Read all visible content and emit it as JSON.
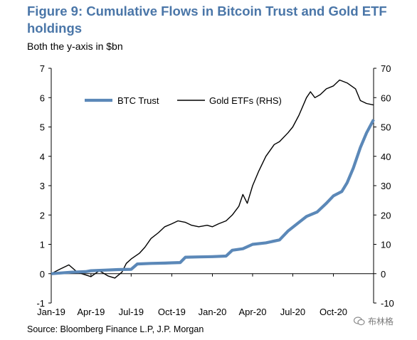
{
  "header": {
    "title": "Figure 9: Cumulative Flows in Bitcoin Trust and Gold ETF holdings",
    "subtitle": "Both the y-axis in $bn"
  },
  "footer": {
    "source": "Source: Bloomberg Finance L.P, J.P. Morgan",
    "watermark": "布林格"
  },
  "colors": {
    "btc": "#5b88b8",
    "gold": "#000000",
    "title": "#4a76a8"
  },
  "chart_data": {
    "type": "line",
    "title": "Figure 9: Cumulative Flows in Bitcoin Trust and Gold ETF holdings",
    "subtitle": "Both the y-axis in $bn",
    "x_tick_labels": [
      "Jan-19",
      "Apr-19",
      "Jul-19",
      "Oct-19",
      "Jan-20",
      "Apr-20",
      "Jul-20",
      "Oct-20"
    ],
    "x_tick_dates": [
      "2019-01-01",
      "2019-04-01",
      "2019-07-01",
      "2019-10-01",
      "2020-01-01",
      "2020-04-01",
      "2020-07-01",
      "2020-10-01"
    ],
    "x_range": [
      "2019-01-01",
      "2020-12-31"
    ],
    "ylim_left": [
      -1,
      7
    ],
    "ylim_right": [
      -10,
      70
    ],
    "y_left_ticks": [
      -1,
      0,
      1,
      2,
      3,
      4,
      5,
      6,
      7
    ],
    "y_right_ticks": [
      -10,
      0,
      10,
      20,
      30,
      40,
      50,
      60,
      70
    ],
    "legend_position": "top-left",
    "grid": false,
    "series": [
      {
        "name": "BTC Trust",
        "axis": "left",
        "points": [
          [
            "2019-01-01",
            0.0
          ],
          [
            "2019-02-15",
            0.05
          ],
          [
            "2019-03-20",
            0.07
          ],
          [
            "2019-04-01",
            0.1
          ],
          [
            "2019-05-01",
            0.12
          ],
          [
            "2019-06-01",
            0.14
          ],
          [
            "2019-07-01",
            0.15
          ],
          [
            "2019-07-15",
            0.33
          ],
          [
            "2019-08-15",
            0.35
          ],
          [
            "2019-09-15",
            0.36
          ],
          [
            "2019-10-01",
            0.37
          ],
          [
            "2019-10-20",
            0.38
          ],
          [
            "2019-11-01",
            0.56
          ],
          [
            "2019-12-01",
            0.57
          ],
          [
            "2020-01-01",
            0.58
          ],
          [
            "2020-02-01",
            0.6
          ],
          [
            "2020-02-15",
            0.8
          ],
          [
            "2020-03-10",
            0.85
          ],
          [
            "2020-04-01",
            1.0
          ],
          [
            "2020-05-01",
            1.05
          ],
          [
            "2020-06-01",
            1.15
          ],
          [
            "2020-06-20",
            1.45
          ],
          [
            "2020-07-15",
            1.75
          ],
          [
            "2020-08-01",
            1.95
          ],
          [
            "2020-08-25",
            2.1
          ],
          [
            "2020-09-15",
            2.4
          ],
          [
            "2020-10-01",
            2.65
          ],
          [
            "2020-10-20",
            2.8
          ],
          [
            "2020-11-01",
            3.1
          ],
          [
            "2020-11-15",
            3.6
          ],
          [
            "2020-12-01",
            4.3
          ],
          [
            "2020-12-15",
            4.8
          ],
          [
            "2020-12-31",
            5.25
          ]
        ]
      },
      {
        "name": "Gold ETFs (RHS)",
        "axis": "right",
        "points": [
          [
            "2019-01-01",
            0.0
          ],
          [
            "2019-01-20",
            1.5
          ],
          [
            "2019-02-10",
            3.0
          ],
          [
            "2019-03-01",
            0.5
          ],
          [
            "2019-04-01",
            -1.0
          ],
          [
            "2019-04-20",
            1.0
          ],
          [
            "2019-05-10",
            -0.8
          ],
          [
            "2019-05-25",
            -1.5
          ],
          [
            "2019-06-10",
            0.5
          ],
          [
            "2019-06-20",
            3.5
          ],
          [
            "2019-07-01",
            5.0
          ],
          [
            "2019-07-20",
            7.0
          ],
          [
            "2019-08-01",
            9.0
          ],
          [
            "2019-08-15",
            12.0
          ],
          [
            "2019-09-01",
            14.0
          ],
          [
            "2019-09-15",
            16.0
          ],
          [
            "2019-10-01",
            17.0
          ],
          [
            "2019-10-15",
            18.0
          ],
          [
            "2019-11-01",
            17.5
          ],
          [
            "2019-11-15",
            16.5
          ],
          [
            "2019-12-01",
            16.0
          ],
          [
            "2019-12-20",
            16.5
          ],
          [
            "2020-01-01",
            16.0
          ],
          [
            "2020-01-15",
            17.0
          ],
          [
            "2020-02-01",
            18.0
          ],
          [
            "2020-02-15",
            20.0
          ],
          [
            "2020-03-01",
            23.0
          ],
          [
            "2020-03-10",
            27.0
          ],
          [
            "2020-03-20",
            24.0
          ],
          [
            "2020-04-01",
            30.0
          ],
          [
            "2020-04-15",
            35.0
          ],
          [
            "2020-05-01",
            40.0
          ],
          [
            "2020-05-20",
            44.0
          ],
          [
            "2020-06-01",
            45.0
          ],
          [
            "2020-06-20",
            48.0
          ],
          [
            "2020-07-01",
            50.0
          ],
          [
            "2020-07-15",
            54.0
          ],
          [
            "2020-08-01",
            60.0
          ],
          [
            "2020-08-10",
            62.0
          ],
          [
            "2020-08-20",
            60.0
          ],
          [
            "2020-09-01",
            61.0
          ],
          [
            "2020-09-15",
            63.0
          ],
          [
            "2020-10-01",
            64.0
          ],
          [
            "2020-10-15",
            66.0
          ],
          [
            "2020-11-01",
            65.0
          ],
          [
            "2020-11-20",
            63.0
          ],
          [
            "2020-12-01",
            59.0
          ],
          [
            "2020-12-15",
            58.0
          ],
          [
            "2020-12-31",
            57.5
          ]
        ]
      }
    ]
  }
}
